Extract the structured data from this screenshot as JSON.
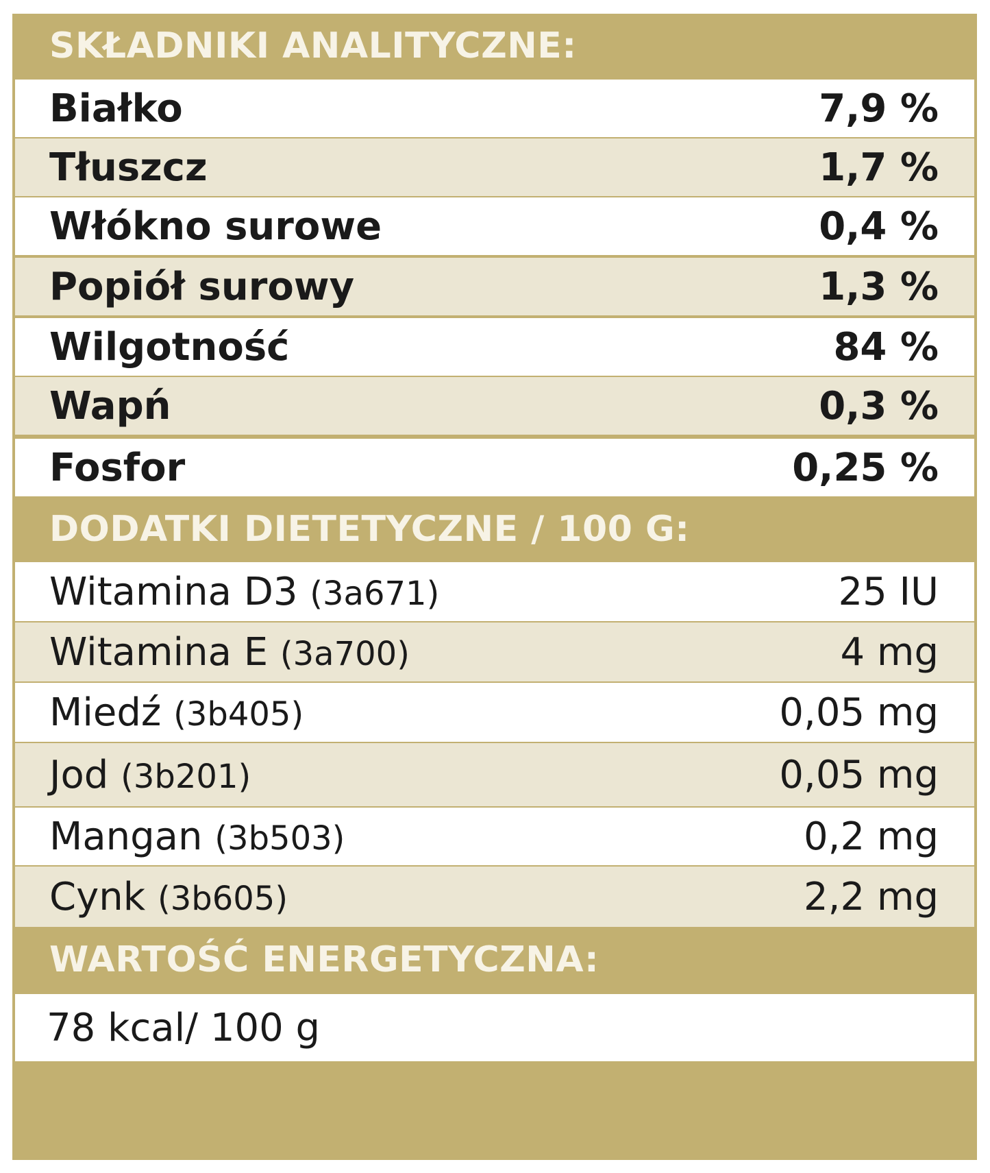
{
  "section1": {
    "title": "SKŁADNIKI ANALITYCZNE:",
    "rows": [
      {
        "name": "Białko",
        "value": "7,9 %"
      },
      {
        "name": "Tłuszcz",
        "value": "1,7 %"
      },
      {
        "name": "Włókno surowe",
        "value": "0,4 %"
      },
      {
        "name": "Popiół surowy",
        "value": "1,3 %"
      },
      {
        "name": "Wilgotność",
        "value": "84 %"
      },
      {
        "name": "Wapń",
        "value": "0,3 %"
      },
      {
        "name": "Fosfor",
        "value": "0,25 %"
      }
    ]
  },
  "section2": {
    "title": "DODATKI DIETETYCZNE / 100 G:",
    "rows": [
      {
        "name": "Witamina D3",
        "code": "(3a671)",
        "value": "25 IU"
      },
      {
        "name": "Witamina E",
        "code": "(3a700)",
        "value": "4 mg"
      },
      {
        "name": "Miedź",
        "code": "(3b405)",
        "value": "0,05 mg"
      },
      {
        "name": "Jod",
        "code": "(3b201)",
        "value": "0,05 mg"
      },
      {
        "name": "Mangan",
        "code": "(3b503)",
        "value": "0,2 mg"
      },
      {
        "name": "Cynk",
        "code": "(3b605)",
        "value": "2,2 mg"
      }
    ]
  },
  "section3": {
    "title": "WARTOŚĆ ENERGETYCZNA:",
    "value": "78 kcal/ 100 g"
  },
  "colors": {
    "header": "#c2b071",
    "header_text": "#f7f3e6",
    "row_alt": "#ebe6d3",
    "row": "#ffffff"
  }
}
